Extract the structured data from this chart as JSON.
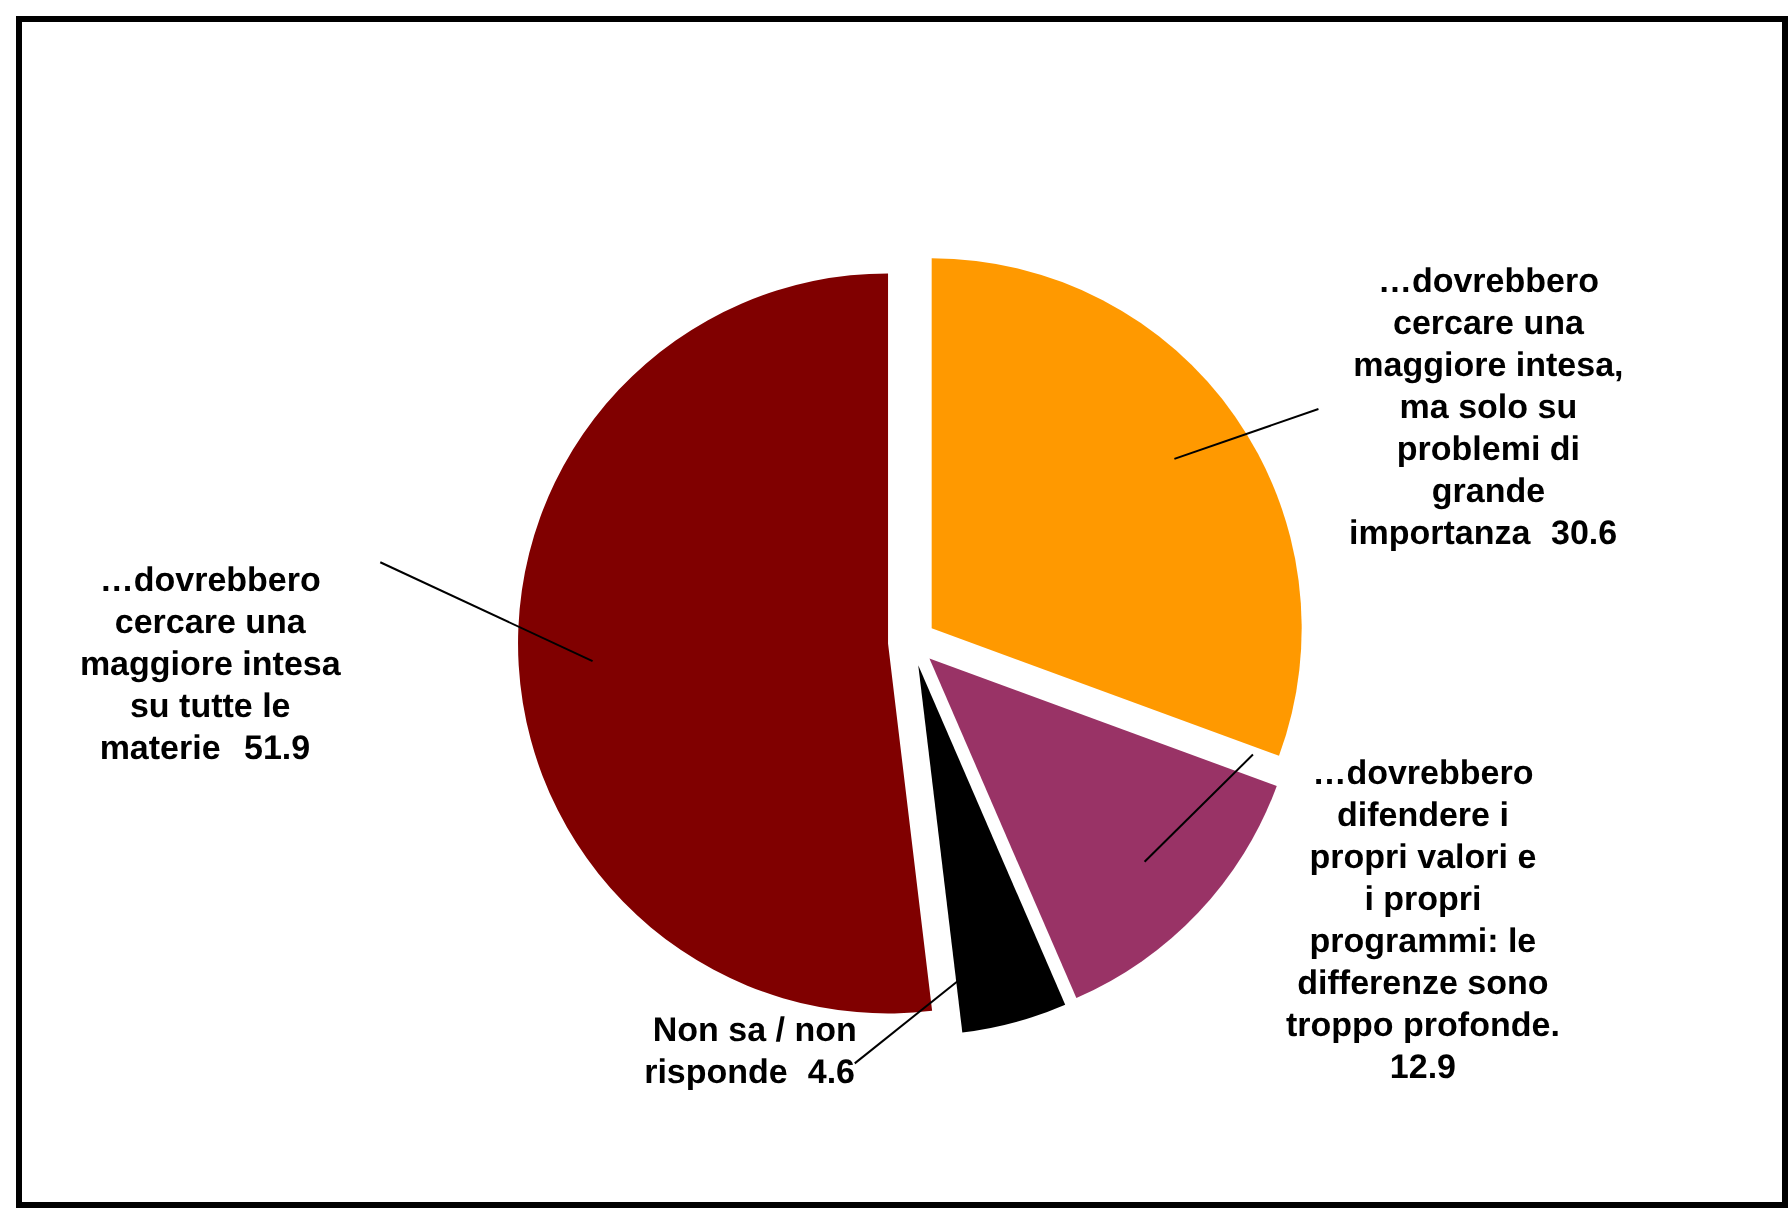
{
  "chart_data": {
    "type": "pie",
    "categories": [
      "…dovrebbero cercare una maggiore intesa, ma solo su problemi di grande importanza",
      "…dovrebbero difendere i propri valori e i propri programmi: le differenze sono troppo profonde.",
      "Non sa / non risponde",
      "…dovrebbero cercare una maggiore intesa su tutte le materie"
    ],
    "values": [
      30.6,
      12.9,
      4.6,
      51.9
    ],
    "colors": [
      "#ff9900",
      "#993366",
      "#000000",
      "#800000"
    ],
    "data_labels": true,
    "legend": false
  }
}
